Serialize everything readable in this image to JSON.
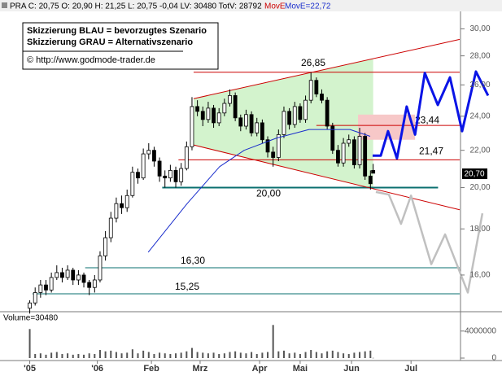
{
  "chart_data": {
    "type": "candlestick",
    "header": {
      "quote": "PRA C: 20,75 O: 20,90 H: 21,25 L: 20,75 -0,04 LV: 30480 TotV: 28792",
      "ma_name": "MovE",
      "ma_value": "MovE=22,72"
    },
    "notes": [
      "Skizzierung BLAU = bevorzugtes Szenario",
      "Skizzierung GRAU = Alternativszenario",
      "© http://www.godmode-trader.de"
    ],
    "xlim": [
      0,
      170
    ],
    "xticks": [
      {
        "value": 11,
        "label": "'05"
      },
      {
        "value": 36,
        "label": "'06"
      },
      {
        "value": 56,
        "label": "Feb"
      },
      {
        "value": 74,
        "label": "Mrz"
      },
      {
        "value": 96,
        "label": "Apr"
      },
      {
        "value": 111,
        "label": "Mai"
      },
      {
        "value": 130,
        "label": "Jun"
      },
      {
        "value": 152,
        "label": "Jul"
      }
    ],
    "ylim": [
      14.6,
      31.3
    ],
    "log": true,
    "yticks": [
      {
        "value": 16,
        "label": "16,00"
      },
      {
        "value": 18,
        "label": "18,00"
      },
      {
        "value": 20,
        "label": "20,00"
      },
      {
        "value": 22,
        "label": "22,00"
      },
      {
        "value": 24,
        "label": "24,00"
      },
      {
        "value": 26,
        "label": "26,00"
      },
      {
        "value": 28,
        "label": "28,00"
      },
      {
        "value": 30,
        "label": "30,00"
      }
    ],
    "bars": [
      {
        "x": 11,
        "open": 14.7,
        "high": 15.0,
        "low": 14.5,
        "close": 14.9,
        "volume": 4300000
      },
      {
        "x": 13,
        "open": 14.9,
        "high": 15.5,
        "low": 14.8,
        "close": 15.3,
        "volume": 600000
      },
      {
        "x": 15,
        "open": 15.3,
        "high": 15.8,
        "low": 15.1,
        "close": 15.6,
        "volume": 700000
      },
      {
        "x": 17,
        "open": 15.6,
        "high": 15.8,
        "low": 15.2,
        "close": 15.4,
        "volume": 500000
      },
      {
        "x": 19,
        "open": 15.4,
        "high": 16.1,
        "low": 15.3,
        "close": 15.9,
        "volume": 800000
      },
      {
        "x": 21,
        "open": 15.9,
        "high": 16.4,
        "low": 15.8,
        "close": 16.1,
        "volume": 900000
      },
      {
        "x": 23,
        "open": 16.1,
        "high": 16.3,
        "low": 15.7,
        "close": 15.9,
        "volume": 600000
      },
      {
        "x": 25,
        "open": 15.9,
        "high": 16.4,
        "low": 15.8,
        "close": 16.2,
        "volume": 700000
      },
      {
        "x": 27,
        "open": 16.2,
        "high": 16.3,
        "low": 15.6,
        "close": 15.8,
        "volume": 500000
      },
      {
        "x": 29,
        "open": 15.8,
        "high": 16.2,
        "low": 15.6,
        "close": 16.0,
        "volume": 600000
      },
      {
        "x": 31,
        "open": 16.0,
        "high": 16.1,
        "low": 15.5,
        "close": 15.7,
        "volume": 500000
      },
      {
        "x": 33,
        "open": 15.7,
        "high": 15.8,
        "low": 15.2,
        "close": 15.5,
        "volume": 700000
      },
      {
        "x": 35,
        "open": 15.5,
        "high": 16.0,
        "low": 15.3,
        "close": 15.8,
        "volume": 600000
      },
      {
        "x": 37,
        "open": 15.8,
        "high": 17.0,
        "low": 15.7,
        "close": 16.8,
        "volume": 1200000
      },
      {
        "x": 39,
        "open": 16.8,
        "high": 17.9,
        "low": 16.6,
        "close": 17.6,
        "volume": 1000000
      },
      {
        "x": 41,
        "open": 17.6,
        "high": 18.8,
        "low": 17.4,
        "close": 18.5,
        "volume": 1100000
      },
      {
        "x": 43,
        "open": 18.5,
        "high": 19.5,
        "low": 18.3,
        "close": 19.2,
        "volume": 900000
      },
      {
        "x": 45,
        "open": 19.2,
        "high": 19.6,
        "low": 18.7,
        "close": 19.0,
        "volume": 700000
      },
      {
        "x": 47,
        "open": 19.0,
        "high": 19.9,
        "low": 18.8,
        "close": 19.6,
        "volume": 800000
      },
      {
        "x": 49,
        "open": 19.6,
        "high": 21.1,
        "low": 19.5,
        "close": 20.8,
        "volume": 1300000
      },
      {
        "x": 51,
        "open": 20.8,
        "high": 21.0,
        "low": 20.2,
        "close": 20.5,
        "volume": 700000
      },
      {
        "x": 53,
        "open": 20.5,
        "high": 22.1,
        "low": 20.4,
        "close": 21.8,
        "volume": 1100000
      },
      {
        "x": 55,
        "open": 21.8,
        "high": 22.4,
        "low": 21.5,
        "close": 22.0,
        "volume": 900000
      },
      {
        "x": 57,
        "open": 22.0,
        "high": 22.2,
        "low": 21.1,
        "close": 21.4,
        "volume": 600000
      },
      {
        "x": 59,
        "open": 21.4,
        "high": 21.6,
        "low": 20.3,
        "close": 20.6,
        "volume": 800000
      },
      {
        "x": 61,
        "open": 20.6,
        "high": 20.9,
        "low": 20.0,
        "close": 20.5,
        "volume": 700000
      },
      {
        "x": 63,
        "open": 20.5,
        "high": 21.2,
        "low": 20.3,
        "close": 20.9,
        "volume": 600000
      },
      {
        "x": 65,
        "open": 20.9,
        "high": 21.1,
        "low": 20.0,
        "close": 20.3,
        "volume": 700000
      },
      {
        "x": 67,
        "open": 20.3,
        "high": 21.3,
        "low": 20.1,
        "close": 21.0,
        "volume": 800000
      },
      {
        "x": 69,
        "open": 21.0,
        "high": 22.5,
        "low": 20.9,
        "close": 22.2,
        "volume": 1000000
      },
      {
        "x": 71,
        "open": 22.2,
        "high": 25.2,
        "low": 22.0,
        "close": 24.6,
        "volume": 1500000
      },
      {
        "x": 73,
        "open": 24.6,
        "high": 25.0,
        "low": 24.0,
        "close": 24.3,
        "volume": 900000
      },
      {
        "x": 75,
        "open": 24.3,
        "high": 24.6,
        "low": 23.4,
        "close": 23.8,
        "volume": 800000
      },
      {
        "x": 77,
        "open": 23.8,
        "high": 24.9,
        "low": 23.6,
        "close": 24.5,
        "volume": 700000
      },
      {
        "x": 79,
        "open": 24.5,
        "high": 24.7,
        "low": 23.3,
        "close": 23.6,
        "volume": 800000
      },
      {
        "x": 81,
        "open": 23.6,
        "high": 24.5,
        "low": 23.4,
        "close": 24.2,
        "volume": 600000
      },
      {
        "x": 83,
        "open": 24.2,
        "high": 25.1,
        "low": 24.0,
        "close": 24.8,
        "volume": 700000
      },
      {
        "x": 85,
        "open": 24.8,
        "high": 25.7,
        "low": 24.6,
        "close": 25.3,
        "volume": 900000
      },
      {
        "x": 87,
        "open": 25.3,
        "high": 25.5,
        "low": 23.7,
        "close": 23.9,
        "volume": 1000000
      },
      {
        "x": 89,
        "open": 23.9,
        "high": 24.1,
        "low": 23.1,
        "close": 23.4,
        "volume": 800000
      },
      {
        "x": 91,
        "open": 23.4,
        "high": 24.4,
        "low": 23.2,
        "close": 24.1,
        "volume": 700000
      },
      {
        "x": 93,
        "open": 24.1,
        "high": 24.3,
        "low": 22.8,
        "close": 23.0,
        "volume": 900000
      },
      {
        "x": 95,
        "open": 23.0,
        "high": 23.9,
        "low": 22.8,
        "close": 23.6,
        "volume": 600000
      },
      {
        "x": 97,
        "open": 23.6,
        "high": 23.8,
        "low": 22.4,
        "close": 22.6,
        "volume": 800000
      },
      {
        "x": 99,
        "open": 22.6,
        "high": 22.8,
        "low": 21.6,
        "close": 21.9,
        "volume": 900000
      },
      {
        "x": 101,
        "open": 21.9,
        "high": 22.2,
        "low": 21.1,
        "close": 21.6,
        "volume": 4900000
      },
      {
        "x": 103,
        "open": 21.6,
        "high": 23.2,
        "low": 21.4,
        "close": 22.9,
        "volume": 1000000
      },
      {
        "x": 105,
        "open": 22.9,
        "high": 24.6,
        "low": 22.7,
        "close": 24.3,
        "volume": 1100000
      },
      {
        "x": 107,
        "open": 24.3,
        "high": 24.5,
        "low": 23.2,
        "close": 23.5,
        "volume": 700000
      },
      {
        "x": 109,
        "open": 23.5,
        "high": 24.9,
        "low": 23.3,
        "close": 24.6,
        "volume": 800000
      },
      {
        "x": 111,
        "open": 24.6,
        "high": 24.8,
        "low": 23.6,
        "close": 23.8,
        "volume": 600000
      },
      {
        "x": 113,
        "open": 23.8,
        "high": 25.3,
        "low": 23.6,
        "close": 25.0,
        "volume": 900000
      },
      {
        "x": 115,
        "open": 25.0,
        "high": 26.85,
        "low": 24.8,
        "close": 26.3,
        "volume": 1200000
      },
      {
        "x": 117,
        "open": 26.3,
        "high": 26.5,
        "low": 25.2,
        "close": 25.4,
        "volume": 900000
      },
      {
        "x": 119,
        "open": 25.4,
        "high": 25.7,
        "low": 24.8,
        "close": 25.0,
        "volume": 700000
      },
      {
        "x": 121,
        "open": 25.0,
        "high": 25.2,
        "low": 23.2,
        "close": 23.4,
        "volume": 1000000
      },
      {
        "x": 123,
        "open": 23.4,
        "high": 23.6,
        "low": 21.8,
        "close": 22.0,
        "volume": 1100000
      },
      {
        "x": 125,
        "open": 22.0,
        "high": 22.3,
        "low": 21.1,
        "close": 21.3,
        "volume": 900000
      },
      {
        "x": 127,
        "open": 21.3,
        "high": 22.7,
        "low": 21.1,
        "close": 22.4,
        "volume": 700000
      },
      {
        "x": 129,
        "open": 22.4,
        "high": 22.9,
        "low": 22.2,
        "close": 22.6,
        "volume": 600000
      },
      {
        "x": 131,
        "open": 22.6,
        "high": 22.8,
        "low": 21.0,
        "close": 21.2,
        "volume": 800000
      },
      {
        "x": 133,
        "open": 21.2,
        "high": 23.3,
        "low": 21.0,
        "close": 22.8,
        "volume": 900000
      },
      {
        "x": 135,
        "open": 22.8,
        "high": 23.0,
        "low": 20.4,
        "close": 20.6,
        "volume": 1000000
      },
      {
        "x": 137,
        "open": 20.6,
        "high": 20.9,
        "low": 19.9,
        "close": 20.2,
        "volume": 1100000
      },
      {
        "x": 138,
        "open": 20.9,
        "high": 21.25,
        "low": 20.75,
        "close": 20.75,
        "volume": 30480
      }
    ],
    "moving_average": {
      "color": "#1a2ecc",
      "x": [
        54.8,
        69.2,
        81.2,
        90.3,
        102.3,
        114.3,
        129.4,
        136.9
      ],
      "values": [
        16.96,
        19.2,
        21.1,
        22.0,
        22.7,
        23.2,
        23.2,
        22.8
      ]
    },
    "levels": [
      {
        "value": 26.85,
        "label": "26,85",
        "color": "#cc0000",
        "x": [
          71.6,
          170
        ]
      },
      {
        "value": 23.44,
        "label": "23,44",
        "color": "#cc0000",
        "x": [
          117,
          170
        ]
      },
      {
        "value": 21.47,
        "label": "21,47",
        "color": "#cc0000",
        "x": [
          66,
          170
        ]
      },
      {
        "value": 20.0,
        "label": "20,00",
        "color": "#0a6f6f",
        "x": [
          60,
          162
        ]
      },
      {
        "value": 16.3,
        "label": "16,30",
        "color": "#0a6f6f",
        "x": [
          31.5,
          170
        ]
      },
      {
        "value": 15.25,
        "label": "15,25",
        "color": "#0a6f6f",
        "x": [
          12,
          170
        ]
      }
    ],
    "channel": {
      "color": "#cc0000",
      "fill": "#c8f0c0",
      "upper": {
        "x": [
          71.6,
          170
        ],
        "values": [
          25.1,
          29.2
        ]
      },
      "lower": {
        "x": [
          71.6,
          170
        ],
        "values": [
          22.3,
          18.9
        ]
      }
    },
    "zone": {
      "x": [
        132.4,
        153.5
      ],
      "values": [
        22.6,
        24.1
      ],
      "color": "#f7c8c8"
    },
    "scenarios": [
      {
        "color": "#0a14e6",
        "x": [
          137.8,
          140.8,
          143.5,
          146.8,
          150.4,
          153.5,
          157.1,
          161.9,
          166.4,
          170.9,
          176,
          180.5
        ],
        "values": [
          21.7,
          21.7,
          23.1,
          21.55,
          24.6,
          22.9,
          26.8,
          24.7,
          26.5,
          23.1,
          26.9,
          25.3
        ]
      },
      {
        "color": "#c0c0c0",
        "x": [
          139,
          143.8,
          148.3,
          152,
          159.5,
          164.6,
          173,
          178.4
        ],
        "values": [
          19.78,
          19.65,
          18.23,
          19.6,
          16.45,
          17.75,
          15.3,
          18.73
        ]
      }
    ],
    "last_price": {
      "value": 20.7,
      "label": "20,70"
    },
    "volume": {
      "label": "Volume=30480",
      "ylim": [
        0,
        6500000
      ],
      "yticks": [
        0,
        4000000
      ]
    }
  }
}
